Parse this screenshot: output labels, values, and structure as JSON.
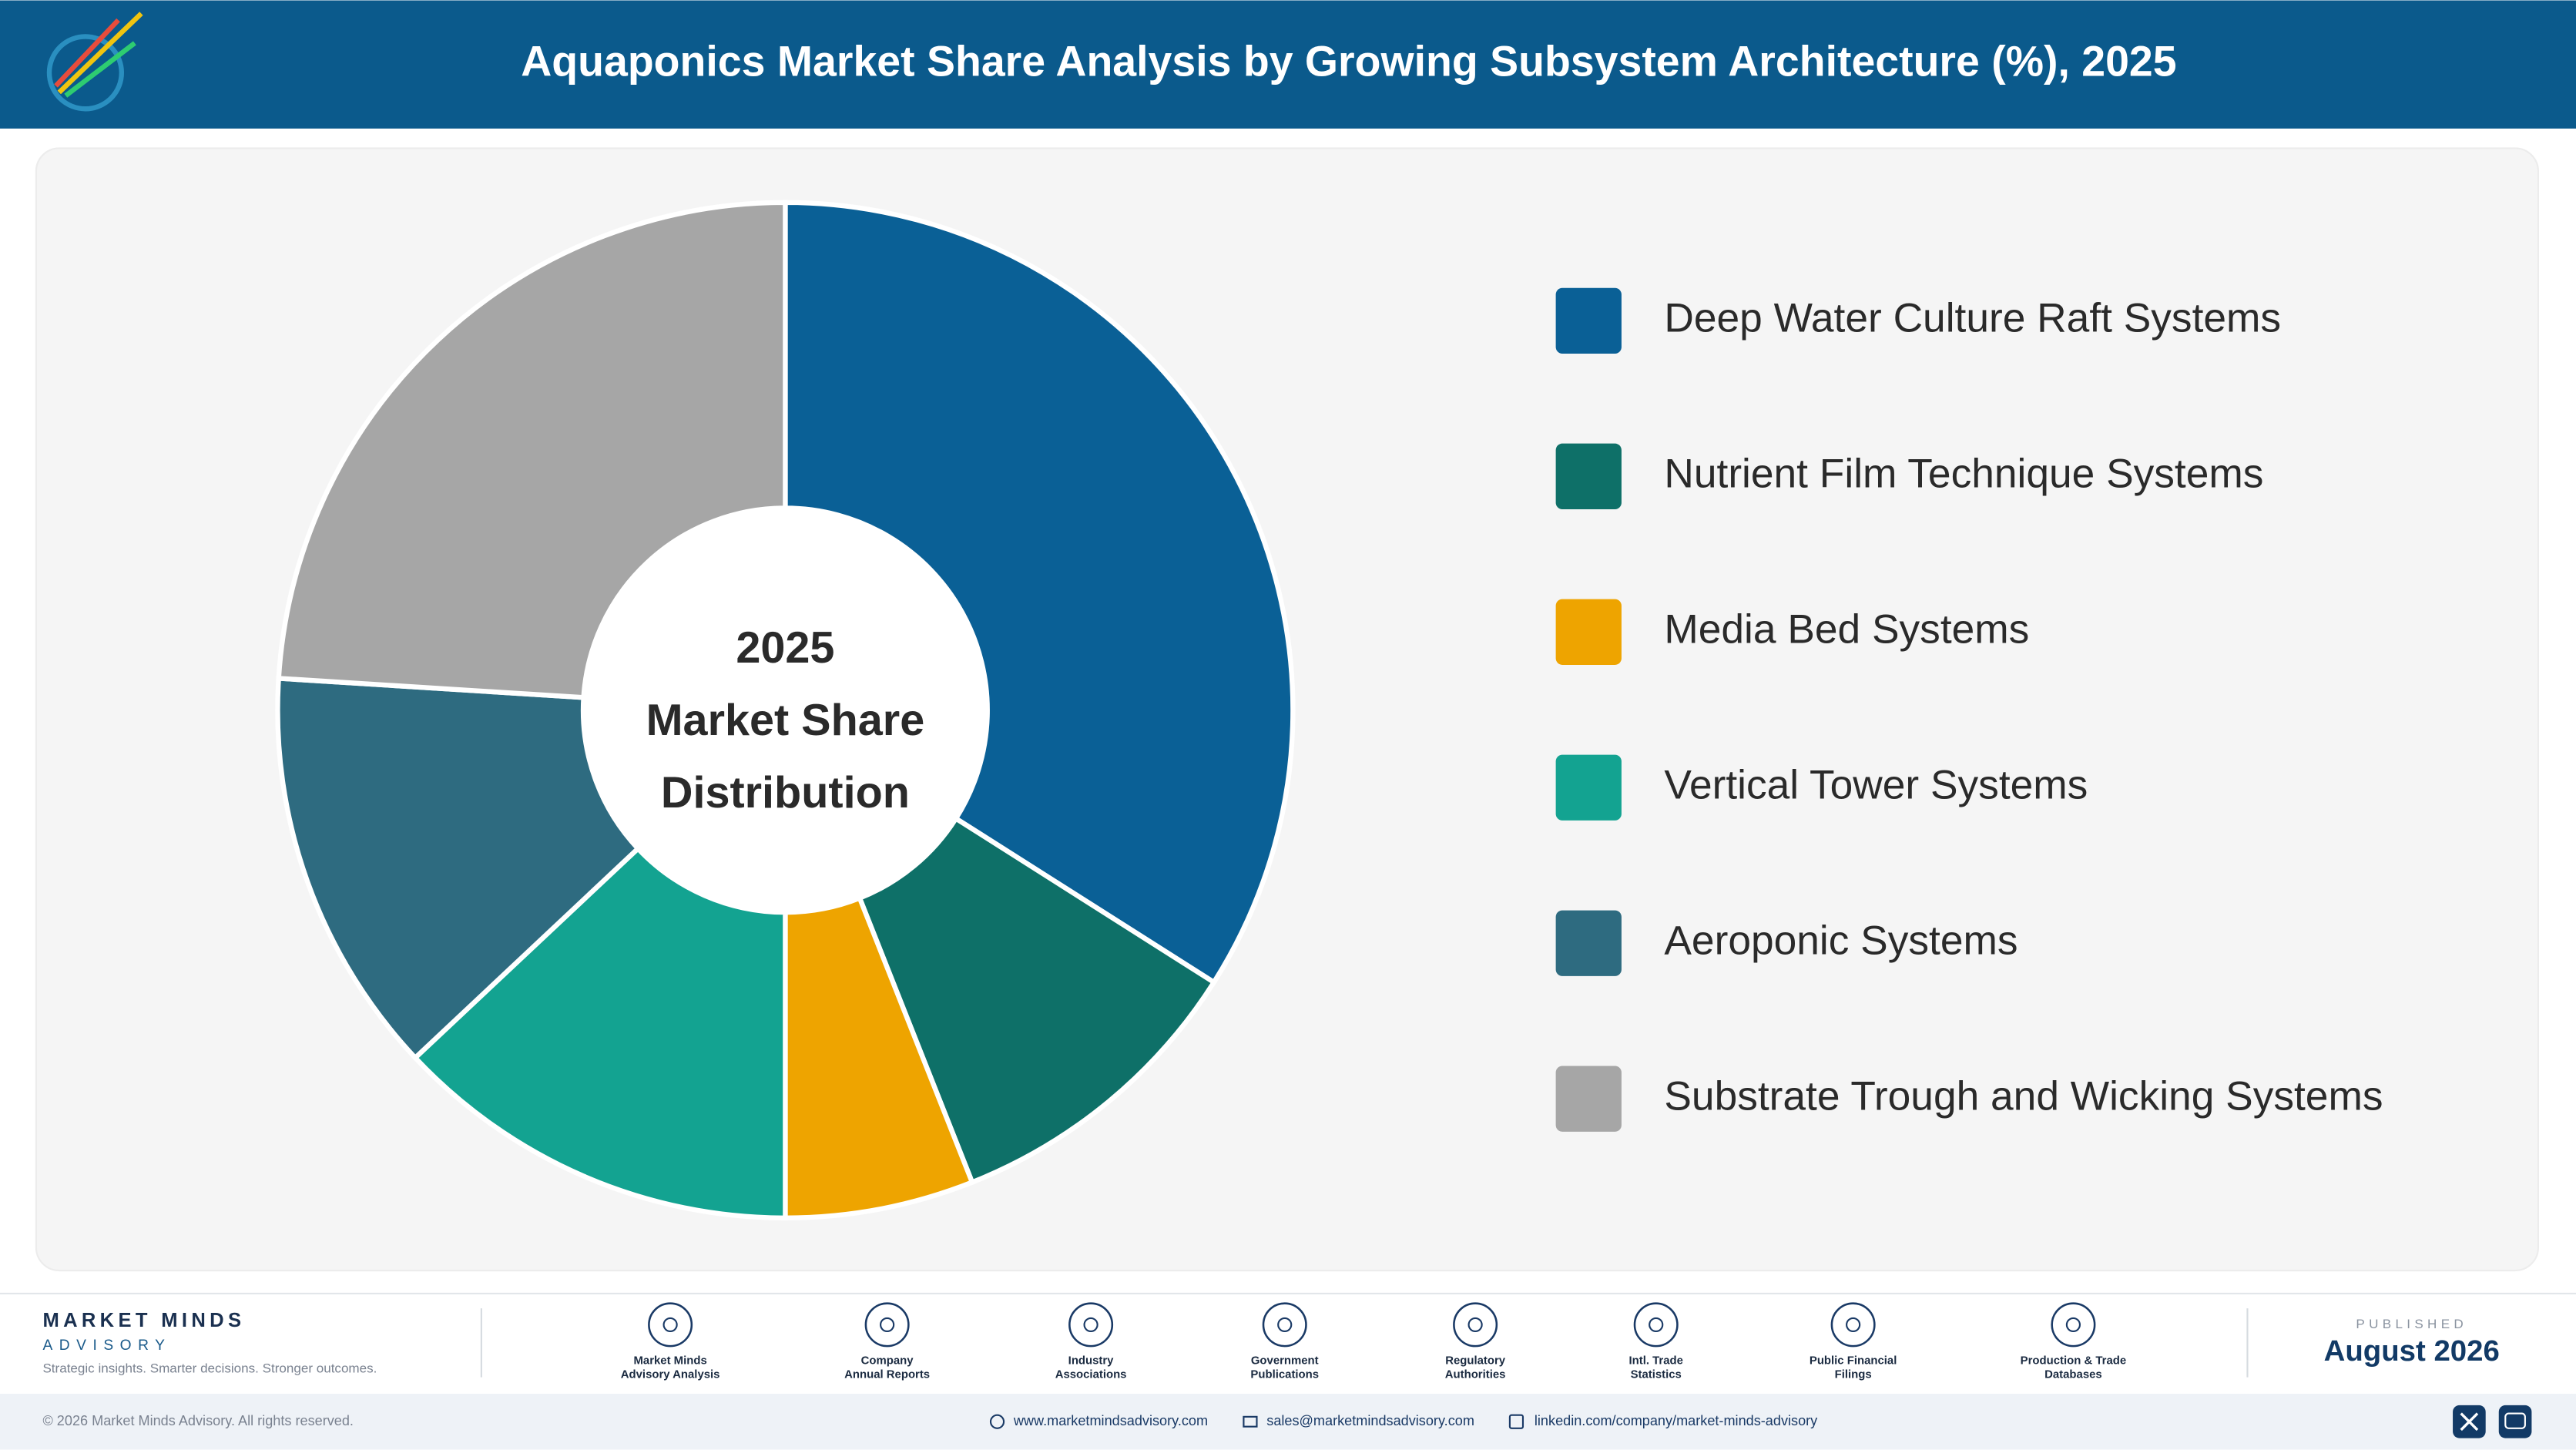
{
  "header": {
    "title": "Aquaponics Market Share Analysis by Growing Subsystem Architecture (%), 2025"
  },
  "chart_data": {
    "type": "donut",
    "center_label": [
      "2025",
      "Market Share",
      "Distribution"
    ],
    "categories": [
      "Deep Water Culture Raft Systems",
      "Nutrient Film Technique Systems",
      "Media Bed Systems",
      "Vertical Tower Systems",
      "Aeroponic Systems",
      "Substrate Trough and Wicking Systems"
    ],
    "values": [
      34,
      10,
      6,
      13,
      13,
      24
    ],
    "colors": [
      "#0a6096",
      "#0e7068",
      "#eea400",
      "#13a391",
      "#2e6b80",
      "#a6a6a6"
    ],
    "legend": "right"
  },
  "footer": {
    "brand": "MARKET MINDS",
    "brand_sub": "ADVISORY",
    "tagline": "Strategic insights. Smarter decisions. Stronger outcomes.",
    "sources": [
      [
        "Market Minds",
        "Advisory Analysis"
      ],
      [
        "Company",
        "Annual Reports"
      ],
      [
        "Industry",
        "Associations"
      ],
      [
        "Government",
        "Publications"
      ],
      [
        "Regulatory",
        "Authorities"
      ],
      [
        "Intl. Trade",
        "Statistics"
      ],
      [
        "Public Financial",
        "Filings"
      ],
      [
        "Production & Trade",
        "Databases"
      ]
    ],
    "published_label": "PUBLISHED",
    "published_date": "August 2026",
    "copyright": "© 2026 Market Minds Advisory. All rights reserved.",
    "website": "www.marketmindsadvisory.com",
    "email": "sales@marketmindsadvisory.com",
    "linkedin": "linkedin.com/company/market-minds-advisory"
  }
}
